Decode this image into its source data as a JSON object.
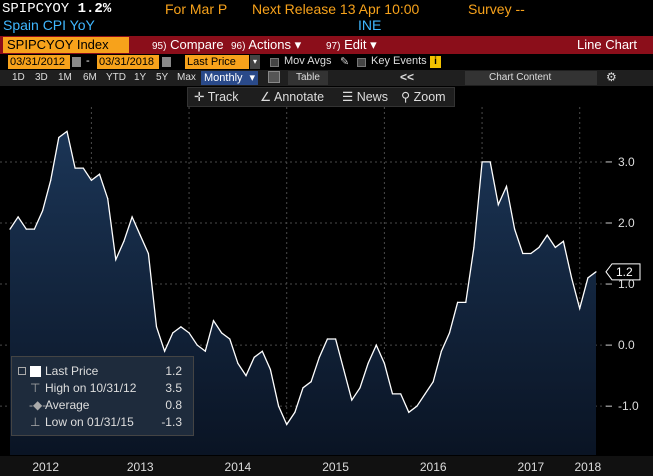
{
  "header": {
    "ticker": "SPIPCYOY",
    "last_value": "1.2%",
    "for_period": "For Mar P",
    "next_release": "Next Release 13 Apr 10:00",
    "survey": "Survey --",
    "description": "Spain CPI YoY",
    "source": "INE"
  },
  "redbar": {
    "security": "SPIPCYOY Index",
    "compare_num": "95)",
    "compare_label": "Compare",
    "actions_num": "96)",
    "actions_label": "Actions",
    "edit_num": "97)",
    "edit_label": "Edit",
    "chart_type": "Line Chart"
  },
  "toolbar1": {
    "start_date": "03/31/2012",
    "dash": "-",
    "end_date": "03/31/2018",
    "field": "Last Price",
    "mov_avgs": "Mov Avgs",
    "key_events": "Key Events",
    "info_icon": "i"
  },
  "toolbar2": {
    "periods": [
      "1D",
      "3D",
      "1M",
      "6M",
      "YTD",
      "1Y",
      "5Y",
      "Max"
    ],
    "frequency": "Monthly",
    "table_label": "Table",
    "collapse": "<<",
    "chart_content": "Chart Content"
  },
  "chart_tools": {
    "track": "Track",
    "annotate": "Annotate",
    "news": "News",
    "zoom": "Zoom"
  },
  "legend": {
    "rows": [
      {
        "label": "Last Price",
        "value": "1.2"
      },
      {
        "label": "High on 10/31/12",
        "value": "3.5"
      },
      {
        "label": "Average",
        "value": "0.8"
      },
      {
        "label": "Low on 01/31/15",
        "value": "-1.3"
      }
    ]
  },
  "chart_data": {
    "type": "area",
    "x_labels": [
      "2012",
      "2013",
      "2014",
      "2015",
      "2016",
      "2017",
      "2018"
    ],
    "y_ticks": [
      "-1.0",
      "0.0",
      "1.0",
      "2.0",
      "3.0"
    ],
    "ylim": [
      -1.8,
      3.9
    ],
    "last_value_label": "1.2",
    "colors": {
      "line": "#ffffff",
      "fill_top": "#1b3556",
      "fill_bottom": "#0a1424",
      "grid": "#4a4a4a",
      "last_tag": "#000000"
    },
    "series": [
      {
        "x": [
          "2012-03",
          "2012-04",
          "2012-05",
          "2012-06",
          "2012-07",
          "2012-08",
          "2012-09",
          "2012-10",
          "2012-11",
          "2012-12",
          "2013-01",
          "2013-02",
          "2013-03",
          "2013-04",
          "2013-05",
          "2013-06",
          "2013-07",
          "2013-08",
          "2013-09",
          "2013-10",
          "2013-11",
          "2013-12",
          "2014-01",
          "2014-02",
          "2014-03",
          "2014-04",
          "2014-05",
          "2014-06",
          "2014-07",
          "2014-08",
          "2014-09",
          "2014-10",
          "2014-11",
          "2014-12",
          "2015-01",
          "2015-02",
          "2015-03",
          "2015-04",
          "2015-05",
          "2015-06",
          "2015-07",
          "2015-08",
          "2015-09",
          "2015-10",
          "2015-11",
          "2015-12",
          "2016-01",
          "2016-02",
          "2016-03",
          "2016-04",
          "2016-05",
          "2016-06",
          "2016-07",
          "2016-08",
          "2016-09",
          "2016-10",
          "2016-11",
          "2016-12",
          "2017-01",
          "2017-02",
          "2017-03",
          "2017-04",
          "2017-05",
          "2017-06",
          "2017-07",
          "2017-08",
          "2017-09",
          "2017-10",
          "2017-11",
          "2017-12",
          "2018-01",
          "2018-02",
          "2018-03"
        ],
        "values": [
          1.9,
          2.1,
          1.9,
          1.9,
          2.2,
          2.7,
          3.4,
          3.5,
          2.9,
          2.9,
          2.7,
          2.8,
          2.4,
          1.4,
          1.7,
          2.1,
          1.8,
          1.5,
          0.3,
          -0.1,
          0.2,
          0.3,
          0.2,
          0.0,
          -0.1,
          0.4,
          0.2,
          0.1,
          -0.3,
          -0.5,
          -0.2,
          -0.1,
          -0.4,
          -1.0,
          -1.3,
          -1.1,
          -0.7,
          -0.6,
          -0.2,
          0.1,
          0.1,
          -0.4,
          -0.9,
          -0.7,
          -0.3,
          0.0,
          -0.3,
          -0.8,
          -0.8,
          -1.1,
          -1.0,
          -0.8,
          -0.6,
          -0.1,
          0.2,
          0.7,
          0.7,
          1.6,
          3.0,
          3.0,
          2.3,
          2.6,
          1.9,
          1.5,
          1.5,
          1.6,
          1.8,
          1.6,
          1.7,
          1.1,
          0.6,
          1.1,
          1.2
        ]
      }
    ]
  }
}
